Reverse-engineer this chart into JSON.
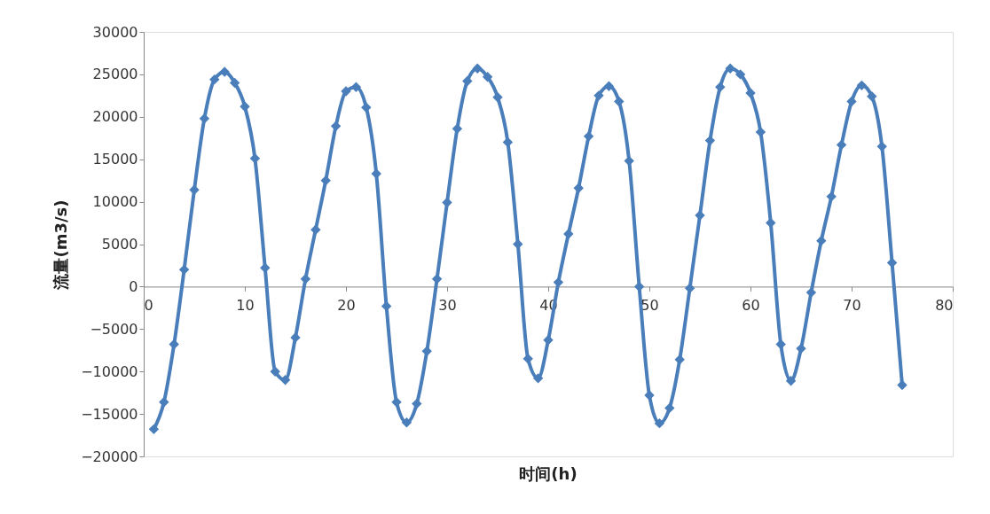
{
  "chart_data": {
    "type": "line",
    "xlabel": "时间(h)",
    "ylabel": "流量(m3/s)",
    "x": [
      1,
      2,
      3,
      4,
      5,
      6,
      7,
      8,
      9,
      10,
      11,
      12,
      13,
      14,
      15,
      16,
      17,
      18,
      19,
      20,
      21,
      22,
      23,
      24,
      25,
      26,
      27,
      28,
      29,
      30,
      31,
      32,
      33,
      34,
      35,
      36,
      37,
      38,
      39,
      40,
      41,
      42,
      43,
      44,
      45,
      46,
      47,
      48,
      49,
      50,
      51,
      52,
      53,
      54,
      55,
      56,
      57,
      58,
      59,
      60,
      61,
      62,
      63,
      64,
      65,
      66,
      67,
      68,
      69,
      70,
      71,
      72,
      73,
      74,
      75
    ],
    "series": [
      {
        "color": "#4a7ebb",
        "values": [
          -16800,
          -13600,
          -6800,
          2000,
          11400,
          19800,
          24400,
          25300,
          24000,
          21200,
          15100,
          2200,
          -10000,
          -11000,
          -6000,
          900,
          6700,
          12500,
          18900,
          23000,
          23500,
          21100,
          13300,
          -2300,
          -13600,
          -16000,
          -13800,
          -7600,
          900,
          9900,
          18600,
          24200,
          25700,
          24700,
          22300,
          17000,
          5000,
          -8500,
          -10800,
          -6300,
          500,
          6200,
          11600,
          17700,
          22500,
          23600,
          21800,
          14800,
          0,
          -12800,
          -16100,
          -14300,
          -8600,
          -200,
          8400,
          17200,
          23500,
          25700,
          25000,
          22800,
          18200,
          7500,
          -6800,
          -11100,
          -7300,
          -700,
          5400,
          10600,
          16700,
          21800,
          23700,
          22400,
          16500,
          2800,
          -11600
        ]
      }
    ],
    "xlim": [
      0,
      80
    ],
    "xticks": [
      0,
      10,
      20,
      30,
      40,
      50,
      60,
      70,
      80
    ],
    "ylim": [
      -20000,
      30000
    ],
    "yticks": [
      -20000,
      -15000,
      -10000,
      -5000,
      0,
      5000,
      10000,
      15000,
      20000,
      25000,
      30000
    ],
    "grid": false,
    "marker": "diamond",
    "line_style": "solid"
  }
}
